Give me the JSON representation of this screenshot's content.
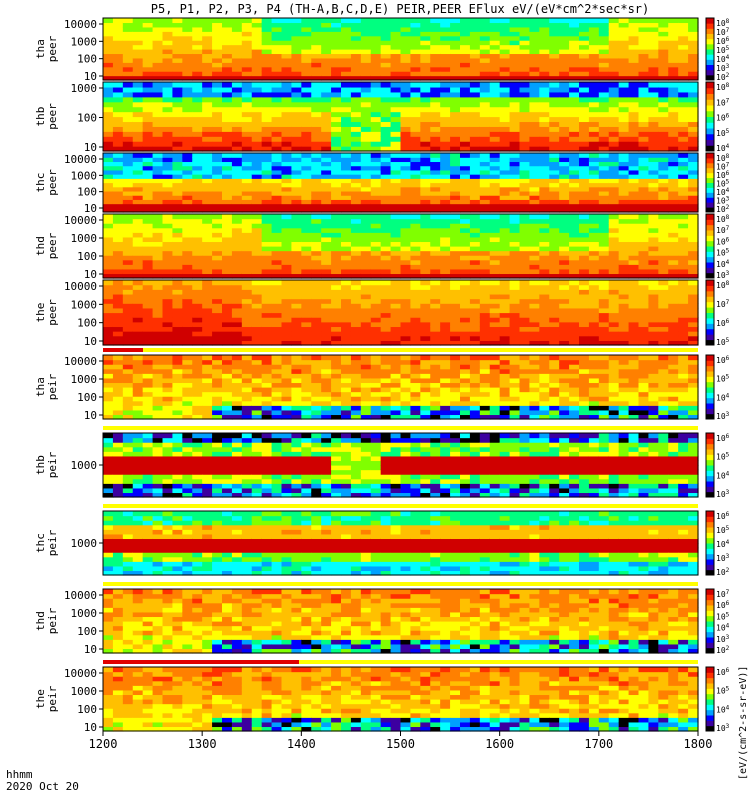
{
  "title": "P5, P1, P2, P3, P4 (TH-A,B,C,D,E) PEIR,PEER EFlux eV/(eV*cm^2*sec*sr)",
  "footer": {
    "time_label": "hhmm",
    "date_label": "2020 Oct 20"
  },
  "chart_data": {
    "type": "heatmap",
    "x_axis": {
      "range": [
        1200,
        1800
      ],
      "ticks": [
        "1200",
        "1300",
        "1400",
        "1500",
        "1600",
        "1700",
        "1800"
      ]
    },
    "colorbar_label": "[eV/(cm^2-s-sr-eV)]",
    "panels": [
      {
        "id": "tha-peer",
        "label_lines": [
          "tha",
          "peer"
        ],
        "y_ticks": [
          "10",
          "100",
          "1000",
          "10000"
        ],
        "cbar_ticks": [
          "10^2",
          "10^3",
          "10^4",
          "10^5",
          "10^6",
          "10^7",
          "10^8"
        ],
        "base": "electron"
      },
      {
        "id": "thb-peer",
        "label_lines": [
          "thb",
          "peer"
        ],
        "y_ticks": [
          "10",
          "100",
          "1000"
        ],
        "cbar_ticks": [
          "10^4",
          "10^5",
          "10^6",
          "10^7",
          "10^8"
        ],
        "base": "electron_b"
      },
      {
        "id": "thc-peer",
        "label_lines": [
          "thc",
          "peer"
        ],
        "y_ticks": [
          "10",
          "100",
          "1000",
          "10000"
        ],
        "cbar_ticks": [
          "10^2",
          "10^3",
          "10^4",
          "10^5",
          "10^6",
          "10^7",
          "10^8"
        ],
        "base": "electron_c"
      },
      {
        "id": "thd-peer",
        "label_lines": [
          "thd",
          "peer"
        ],
        "y_ticks": [
          "10",
          "100",
          "1000",
          "10000"
        ],
        "cbar_ticks": [
          "10^3",
          "10^4",
          "10^5",
          "10^6",
          "10^7",
          "10^8"
        ],
        "base": "electron"
      },
      {
        "id": "the-peer",
        "label_lines": [
          "the",
          "peer"
        ],
        "y_ticks": [
          "10",
          "100",
          "1000",
          "10000"
        ],
        "cbar_ticks": [
          "10^5",
          "10^6",
          "10^7",
          "10^8"
        ],
        "base": "electron_e"
      },
      {
        "id": "tha-peir",
        "label_lines": [
          "tha",
          "peir"
        ],
        "y_ticks": [
          "10",
          "100",
          "1000",
          "10000"
        ],
        "cbar_ticks": [
          "10^3",
          "10^4",
          "10^5",
          "10^6"
        ],
        "base": "ion"
      },
      {
        "id": "thb-peir",
        "label_lines": [
          "thb",
          "peir"
        ],
        "y_ticks": [
          "1000"
        ],
        "cbar_ticks": [
          "10^3",
          "10^4",
          "10^5",
          "10^6"
        ],
        "base": "ion_b"
      },
      {
        "id": "thc-peir",
        "label_lines": [
          "thc",
          "peir"
        ],
        "y_ticks": [
          "1000"
        ],
        "cbar_ticks": [
          "10^2",
          "10^3",
          "10^4",
          "10^5",
          "10^6"
        ],
        "base": "ion_c"
      },
      {
        "id": "thd-peir",
        "label_lines": [
          "thd",
          "peir"
        ],
        "y_ticks": [
          "10",
          "100",
          "1000",
          "10000"
        ],
        "cbar_ticks": [
          "10^2",
          "10^3",
          "10^4",
          "10^5",
          "10^6",
          "10^7"
        ],
        "base": "ion"
      },
      {
        "id": "the-peir",
        "label_lines": [
          "the",
          "peir"
        ],
        "y_ticks": [
          "10",
          "100",
          "1000",
          "10000"
        ],
        "cbar_ticks": [
          "10^3",
          "10^4",
          "10^5",
          "10^6"
        ],
        "base": "ion"
      }
    ],
    "colormap": [
      "#000000",
      "#3c00a0",
      "#0000ff",
      "#00a0ff",
      "#00ffff",
      "#00ff80",
      "#80ff00",
      "#ffff00",
      "#ffc000",
      "#ff8000",
      "#ff3000",
      "#d00000"
    ]
  }
}
